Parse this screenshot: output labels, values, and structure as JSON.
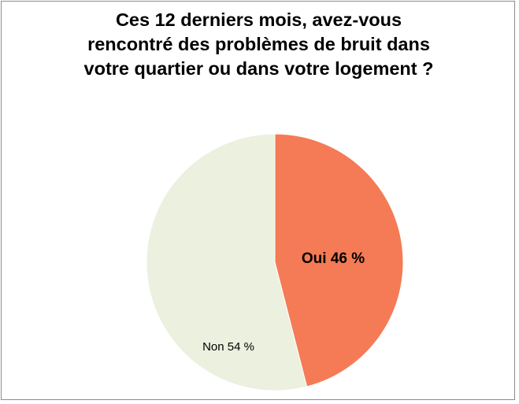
{
  "chart_data": {
    "type": "pie",
    "title_lines": [
      "Ces 12 derniers mois, avez-vous",
      "rencontré des problèmes de bruit dans",
      "votre quartier ou dans votre logement ?"
    ],
    "slices": [
      {
        "label": "Oui",
        "value": 46,
        "display": "Oui  46 %",
        "color": "#f47b55"
      },
      {
        "label": "Non",
        "value": 54,
        "display": "Non 54 %",
        "color": "#ebf0df"
      }
    ],
    "start_angle": "12 o'clock",
    "direction": "clockwise",
    "legend": "none"
  }
}
